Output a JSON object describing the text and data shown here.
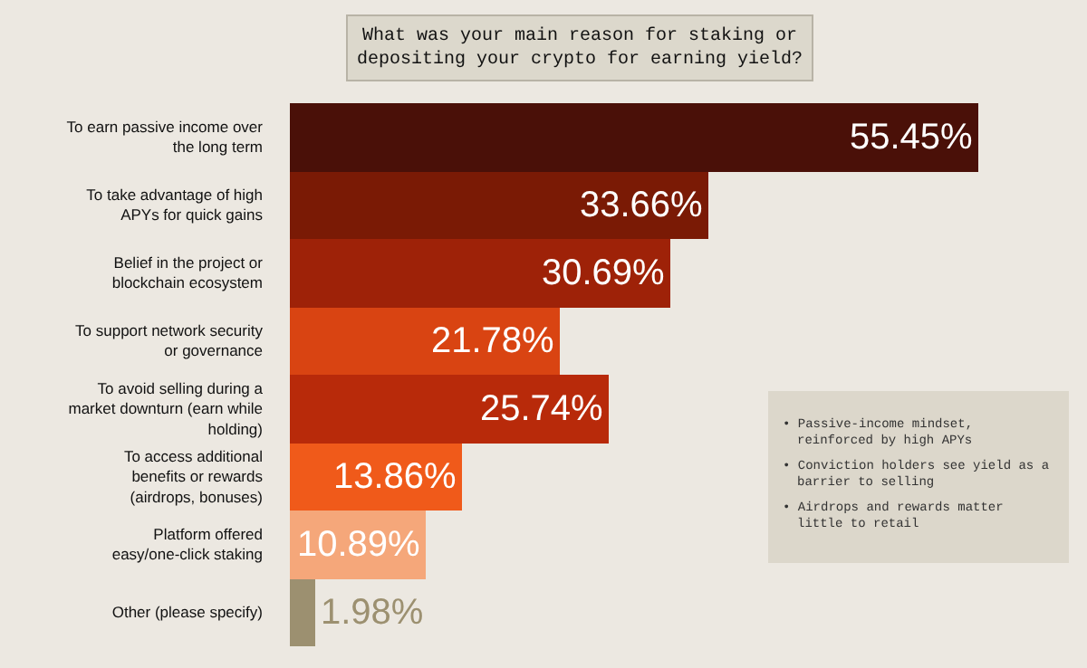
{
  "chart_data": {
    "type": "bar",
    "orientation": "horizontal",
    "title": "What was your main reason for staking or depositing your crypto for earning yield?",
    "categories": [
      "To earn passive income over the long term",
      "To take advantage of high APYs for quick gains",
      "Belief in the project or blockchain ecosystem",
      "To support network security or governance",
      "To avoid selling during a market downturn (earn while holding)",
      "To access additional benefits or rewards (airdrops, bonuses)",
      "Platform offered easy/one-click staking",
      "Other (please specify)"
    ],
    "values": [
      55.45,
      33.66,
      30.69,
      21.78,
      25.74,
      13.86,
      10.89,
      1.98
    ],
    "value_labels": [
      "55.45%",
      "33.66%",
      "30.69%",
      "21.78%",
      "25.74%",
      "13.86%",
      "10.89%",
      "1.98%"
    ],
    "colors": [
      "#4a1008",
      "#7a1a05",
      "#9e2208",
      "#d94412",
      "#b82a0a",
      "#f05a1a",
      "#f5a77a",
      "#9c9070"
    ],
    "annotations": [
      "• Passive-income mindset, reinforced by high APYs",
      "• Conviction holders see yield as a barrier to selling",
      "• Airdrops and rewards matter little to retail"
    ]
  }
}
